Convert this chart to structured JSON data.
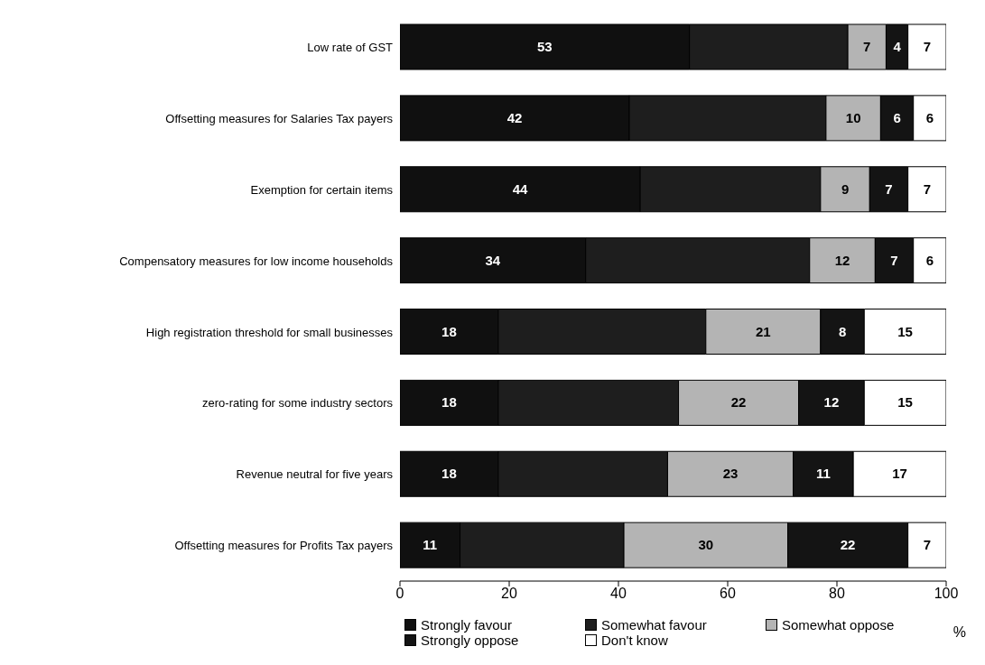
{
  "chart_data": {
    "type": "bar",
    "orientation": "horizontal",
    "stacked": true,
    "categories": [
      "Low rate of GST",
      "Offsetting measures for Salaries Tax payers",
      "Exemption for certain items",
      "Compensatory measures for low income households",
      "High registration threshold for small businesses",
      "zero-rating for some industry sectors",
      "Revenue neutral for five years",
      "Offsetting measures for Profits Tax payers"
    ],
    "series": [
      {
        "name": "Strongly favour",
        "color": "#101010",
        "values": [
          53,
          42,
          44,
          34,
          18,
          18,
          18,
          11
        ],
        "value_labels": [
          "53",
          "42",
          "44",
          "34",
          "18",
          "18",
          "18",
          "11"
        ]
      },
      {
        "name": "Somewhat favour",
        "color": "#1e1e1e",
        "values": [
          29,
          36,
          33,
          41,
          38,
          33,
          31,
          30
        ],
        "value_labels": [
          null,
          null,
          null,
          null,
          null,
          null,
          null,
          null
        ]
      },
      {
        "name": "Somewhat oppose",
        "color": "#b4b4b4",
        "values": [
          7,
          10,
          9,
          12,
          21,
          22,
          23,
          30
        ],
        "value_labels": [
          "7",
          "10",
          "9",
          "12",
          "21",
          "22",
          "23",
          "30"
        ]
      },
      {
        "name": "Strongly oppose",
        "color": "#141414",
        "values": [
          4,
          6,
          7,
          7,
          8,
          12,
          11,
          22
        ],
        "value_labels": [
          "4",
          "6",
          "7",
          "7",
          "8",
          "12",
          "11",
          "22"
        ]
      },
      {
        "name": "Don't know",
        "color": "#ffffff",
        "values": [
          7,
          6,
          7,
          6,
          15,
          15,
          17,
          7
        ],
        "value_labels": [
          "7",
          "6",
          "7",
          "6",
          "15",
          "15",
          "17",
          "7"
        ]
      }
    ],
    "xlim": [
      0,
      100
    ],
    "xticks": [
      0,
      20,
      40,
      60,
      80,
      100
    ],
    "xlabel": "%",
    "legend": "bottom"
  }
}
